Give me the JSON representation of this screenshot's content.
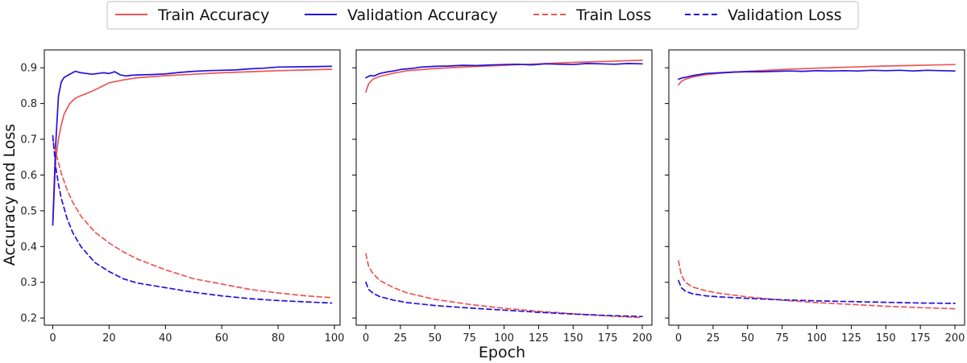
{
  "colors": {
    "train": "#ee5555",
    "validation": "#2211dd",
    "frame": "#000000",
    "legend_border": "#cccccc"
  },
  "legend": {
    "items": [
      {
        "label": "Train Accuracy",
        "color": "#ee5555",
        "dash": "solid"
      },
      {
        "label": "Validation Accuracy",
        "color": "#2211dd",
        "dash": "solid"
      },
      {
        "label": "Train Loss",
        "color": "#ee5555",
        "dash": "dashed"
      },
      {
        "label": "Validation Loss",
        "color": "#2211dd",
        "dash": "dashed"
      }
    ]
  },
  "axes": {
    "ylabel": "Accuracy and Loss",
    "xlabel": "Epoch"
  },
  "chart_data": [
    {
      "type": "line",
      "xlim": [
        -3,
        102
      ],
      "ylim": [
        0.18,
        0.95
      ],
      "xticks": [
        0,
        20,
        40,
        60,
        80,
        100
      ],
      "yticks": [
        0.2,
        0.3,
        0.4,
        0.5,
        0.6,
        0.7,
        0.8,
        0.9
      ],
      "series": [
        {
          "name": "Train Accuracy",
          "style": "solid",
          "color": "#ee5555",
          "x": [
            0,
            1,
            2,
            3,
            4,
            5,
            6,
            8,
            10,
            12,
            14,
            16,
            18,
            20,
            25,
            30,
            40,
            50,
            60,
            70,
            80,
            90,
            99
          ],
          "y": [
            0.46,
            0.64,
            0.7,
            0.74,
            0.77,
            0.785,
            0.8,
            0.815,
            0.822,
            0.828,
            0.835,
            0.842,
            0.85,
            0.858,
            0.866,
            0.872,
            0.878,
            0.882,
            0.886,
            0.889,
            0.892,
            0.894,
            0.896
          ]
        },
        {
          "name": "Validation Accuracy",
          "style": "solid",
          "color": "#2211dd",
          "x": [
            0,
            1,
            2,
            3,
            4,
            6,
            8,
            10,
            12,
            14,
            16,
            18,
            20,
            22,
            24,
            26,
            28,
            30,
            35,
            40,
            45,
            50,
            55,
            60,
            65,
            70,
            75,
            80,
            90,
            99
          ],
          "y": [
            0.46,
            0.68,
            0.82,
            0.86,
            0.873,
            0.882,
            0.89,
            0.886,
            0.884,
            0.882,
            0.884,
            0.886,
            0.884,
            0.889,
            0.88,
            0.877,
            0.879,
            0.88,
            0.881,
            0.883,
            0.887,
            0.89,
            0.892,
            0.893,
            0.894,
            0.897,
            0.899,
            0.902,
            0.903,
            0.904
          ]
        },
        {
          "name": "Train Loss",
          "style": "dashed",
          "color": "#ee5555",
          "x": [
            0,
            1,
            2,
            3,
            5,
            7,
            10,
            15,
            20,
            25,
            30,
            40,
            50,
            60,
            70,
            80,
            90,
            99
          ],
          "y": [
            0.7,
            0.665,
            0.635,
            0.605,
            0.56,
            0.525,
            0.485,
            0.44,
            0.41,
            0.385,
            0.365,
            0.335,
            0.31,
            0.295,
            0.28,
            0.27,
            0.262,
            0.257
          ]
        },
        {
          "name": "Validation Loss",
          "style": "dashed",
          "color": "#2211dd",
          "x": [
            0,
            1,
            2,
            3,
            5,
            7,
            10,
            15,
            20,
            25,
            30,
            40,
            50,
            60,
            70,
            80,
            90,
            99
          ],
          "y": [
            0.71,
            0.625,
            0.575,
            0.535,
            0.48,
            0.44,
            0.4,
            0.355,
            0.33,
            0.31,
            0.298,
            0.285,
            0.272,
            0.262,
            0.254,
            0.249,
            0.245,
            0.242
          ]
        }
      ]
    },
    {
      "type": "line",
      "xlim": [
        -7,
        207
      ],
      "ylim": [
        0.18,
        0.95
      ],
      "xticks": [
        0,
        25,
        50,
        75,
        100,
        125,
        150,
        175,
        200
      ],
      "yticks": [
        0.2,
        0.3,
        0.4,
        0.5,
        0.6,
        0.7,
        0.8,
        0.9
      ],
      "series": [
        {
          "name": "Train Accuracy",
          "style": "solid",
          "color": "#ee5555",
          "x": [
            0,
            2,
            5,
            10,
            20,
            30,
            50,
            75,
            100,
            125,
            150,
            175,
            200
          ],
          "y": [
            0.832,
            0.855,
            0.868,
            0.876,
            0.885,
            0.892,
            0.898,
            0.903,
            0.907,
            0.911,
            0.915,
            0.918,
            0.921
          ]
        },
        {
          "name": "Validation Accuracy",
          "style": "solid",
          "color": "#2211dd",
          "x": [
            0,
            3,
            6,
            10,
            15,
            20,
            25,
            30,
            35,
            40,
            45,
            50,
            60,
            70,
            80,
            90,
            100,
            110,
            120,
            130,
            140,
            150,
            160,
            170,
            180,
            190,
            200
          ],
          "y": [
            0.872,
            0.878,
            0.877,
            0.884,
            0.888,
            0.891,
            0.895,
            0.897,
            0.899,
            0.902,
            0.903,
            0.904,
            0.905,
            0.907,
            0.906,
            0.908,
            0.909,
            0.91,
            0.908,
            0.911,
            0.91,
            0.909,
            0.912,
            0.911,
            0.91,
            0.912,
            0.911
          ]
        },
        {
          "name": "Train Loss",
          "style": "dashed",
          "color": "#ee5555",
          "x": [
            0,
            2,
            5,
            10,
            20,
            30,
            50,
            75,
            100,
            125,
            150,
            175,
            200
          ],
          "y": [
            0.38,
            0.345,
            0.325,
            0.305,
            0.285,
            0.27,
            0.252,
            0.238,
            0.227,
            0.219,
            0.212,
            0.206,
            0.201
          ]
        },
        {
          "name": "Validation Loss",
          "style": "dashed",
          "color": "#2211dd",
          "x": [
            0,
            2,
            5,
            10,
            20,
            30,
            50,
            75,
            100,
            125,
            150,
            175,
            200
          ],
          "y": [
            0.3,
            0.28,
            0.27,
            0.26,
            0.25,
            0.243,
            0.235,
            0.228,
            0.222,
            0.216,
            0.211,
            0.207,
            0.204
          ]
        }
      ]
    },
    {
      "type": "line",
      "xlim": [
        -7,
        207
      ],
      "ylim": [
        0.18,
        0.95
      ],
      "xticks": [
        0,
        25,
        50,
        75,
        100,
        125,
        150,
        175,
        200
      ],
      "yticks": [
        0.2,
        0.3,
        0.4,
        0.5,
        0.6,
        0.7,
        0.8,
        0.9
      ],
      "series": [
        {
          "name": "Train Accuracy",
          "style": "solid",
          "color": "#ee5555",
          "x": [
            0,
            2,
            5,
            10,
            20,
            30,
            50,
            75,
            100,
            125,
            150,
            175,
            200
          ],
          "y": [
            0.852,
            0.862,
            0.868,
            0.874,
            0.881,
            0.885,
            0.89,
            0.895,
            0.899,
            0.902,
            0.905,
            0.907,
            0.909
          ]
        },
        {
          "name": "Validation Accuracy",
          "style": "solid",
          "color": "#2211dd",
          "x": [
            0,
            3,
            6,
            10,
            15,
            20,
            30,
            40,
            50,
            60,
            70,
            80,
            90,
            100,
            110,
            120,
            130,
            140,
            150,
            160,
            170,
            180,
            190,
            200
          ],
          "y": [
            0.868,
            0.872,
            0.874,
            0.878,
            0.881,
            0.884,
            0.886,
            0.888,
            0.889,
            0.889,
            0.89,
            0.891,
            0.89,
            0.892,
            0.891,
            0.892,
            0.891,
            0.893,
            0.892,
            0.893,
            0.891,
            0.893,
            0.892,
            0.891
          ]
        },
        {
          "name": "Train Loss",
          "style": "dashed",
          "color": "#ee5555",
          "x": [
            0,
            2,
            5,
            10,
            20,
            30,
            50,
            75,
            100,
            125,
            150,
            175,
            200
          ],
          "y": [
            0.36,
            0.32,
            0.3,
            0.287,
            0.276,
            0.269,
            0.259,
            0.25,
            0.243,
            0.238,
            0.233,
            0.229,
            0.226
          ]
        },
        {
          "name": "Validation Loss",
          "style": "dashed",
          "color": "#2211dd",
          "x": [
            0,
            2,
            5,
            10,
            20,
            30,
            50,
            75,
            100,
            125,
            150,
            175,
            200
          ],
          "y": [
            0.305,
            0.285,
            0.275,
            0.268,
            0.262,
            0.259,
            0.255,
            0.251,
            0.248,
            0.246,
            0.244,
            0.242,
            0.241
          ]
        }
      ]
    }
  ]
}
